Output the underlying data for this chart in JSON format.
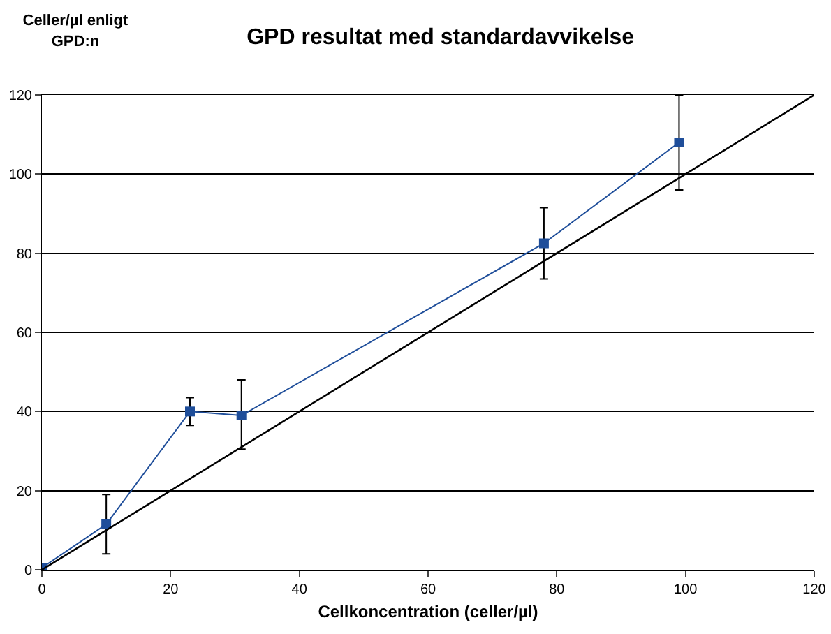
{
  "chart_data": {
    "type": "line",
    "title": "GPD resultat med standardavvikelse",
    "xlabel": "Cellkoncentration (celler/µl)",
    "ylabel": "Celler/µl enligt GPD:n",
    "x": [
      0,
      10,
      23,
      31,
      78,
      99
    ],
    "series": [
      {
        "color": "#1f4e9a",
        "values": [
          0.5,
          11.5,
          40,
          39,
          82.5,
          108
        ],
        "errors": [
          null,
          [
            4,
            19
          ],
          [
            36.5,
            43.5
          ],
          [
            30.5,
            48
          ],
          [
            73.5,
            91.5
          ],
          [
            96,
            120
          ]
        ],
        "marker": "square"
      },
      {
        "color": "#000000",
        "x": [
          0,
          120
        ],
        "values": [
          0,
          120
        ],
        "marker": "none"
      }
    ],
    "xlim": [
      0,
      120
    ],
    "ylim": [
      0,
      120
    ],
    "xticks": [
      0,
      20,
      40,
      60,
      80,
      100,
      120
    ],
    "yticks": [
      0,
      20,
      40,
      60,
      80,
      100,
      120
    ],
    "grid": "y"
  }
}
